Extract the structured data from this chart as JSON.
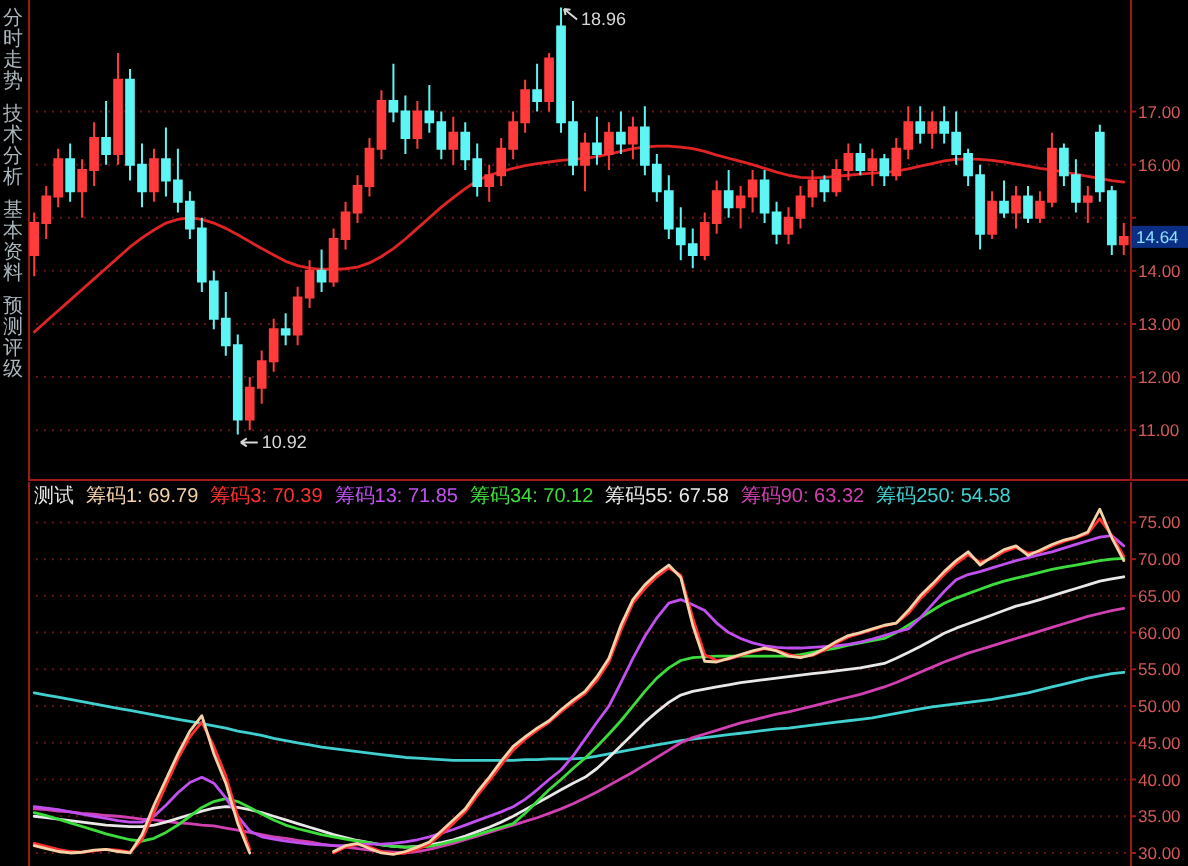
{
  "chart_data": [
    {
      "type": "candlestick",
      "categories": [
        null,
        null,
        null,
        null,
        null,
        null,
        null,
        null,
        null,
        null,
        null,
        null,
        null,
        null,
        null,
        null,
        null,
        null,
        null,
        null,
        null,
        null,
        null,
        null,
        null,
        null,
        null,
        null,
        null,
        null,
        null,
        null,
        null,
        null,
        null,
        null,
        null,
        null,
        null,
        null,
        null,
        null,
        null,
        null,
        null,
        null,
        null,
        null,
        null,
        null,
        null,
        null,
        null,
        null,
        null,
        null,
        null,
        null,
        null,
        null,
        null,
        null,
        null,
        null,
        null,
        null,
        null,
        null,
        null,
        null,
        null,
        null,
        null,
        null,
        null,
        null,
        null,
        null,
        null,
        null,
        null,
        null,
        null,
        null,
        null,
        null,
        null,
        null,
        null,
        null,
        null,
        null
      ],
      "ohlc": [
        [
          14.3,
          15.1,
          13.9,
          14.9
        ],
        [
          14.9,
          15.6,
          14.6,
          15.4
        ],
        [
          15.4,
          16.3,
          15.2,
          16.1
        ],
        [
          16.1,
          16.4,
          15.3,
          15.5
        ],
        [
          15.5,
          16.1,
          15.0,
          15.9
        ],
        [
          15.9,
          16.8,
          15.6,
          16.5
        ],
        [
          16.5,
          17.2,
          16.0,
          16.2
        ],
        [
          16.2,
          18.1,
          16.0,
          17.6
        ],
        [
          17.6,
          17.8,
          15.7,
          16.0
        ],
        [
          16.0,
          16.4,
          15.2,
          15.5
        ],
        [
          15.5,
          16.3,
          15.3,
          16.1
        ],
        [
          16.1,
          16.7,
          15.4,
          15.7
        ],
        [
          15.7,
          16.3,
          15.1,
          15.3
        ],
        [
          15.3,
          15.5,
          14.6,
          14.8
        ],
        [
          14.8,
          15.0,
          13.6,
          13.8
        ],
        [
          13.8,
          14.0,
          12.9,
          13.1
        ],
        [
          13.1,
          13.6,
          12.4,
          12.6
        ],
        [
          12.6,
          12.8,
          10.92,
          11.2
        ],
        [
          11.2,
          12.0,
          11.0,
          11.8
        ],
        [
          11.8,
          12.5,
          11.5,
          12.3
        ],
        [
          12.3,
          13.1,
          12.1,
          12.9
        ],
        [
          12.9,
          13.2,
          12.6,
          12.8
        ],
        [
          12.8,
          13.7,
          12.6,
          13.5
        ],
        [
          13.5,
          14.2,
          13.3,
          14.0
        ],
        [
          14.0,
          14.4,
          13.6,
          13.8
        ],
        [
          13.8,
          14.8,
          13.7,
          14.6
        ],
        [
          14.6,
          15.3,
          14.4,
          15.1
        ],
        [
          15.1,
          15.8,
          14.9,
          15.6
        ],
        [
          15.6,
          16.5,
          15.4,
          16.3
        ],
        [
          16.3,
          17.4,
          16.1,
          17.2
        ],
        [
          17.2,
          17.9,
          16.8,
          17.0
        ],
        [
          17.0,
          17.3,
          16.2,
          16.5
        ],
        [
          16.5,
          17.2,
          16.3,
          17.0
        ],
        [
          17.0,
          17.5,
          16.6,
          16.8
        ],
        [
          16.8,
          17.0,
          16.1,
          16.3
        ],
        [
          16.3,
          16.9,
          16.0,
          16.6
        ],
        [
          16.6,
          16.8,
          15.9,
          16.1
        ],
        [
          16.1,
          16.4,
          15.4,
          15.6
        ],
        [
          15.6,
          16.0,
          15.3,
          15.8
        ],
        [
          15.8,
          16.5,
          15.6,
          16.3
        ],
        [
          16.3,
          17.0,
          16.1,
          16.8
        ],
        [
          16.8,
          17.6,
          16.6,
          17.4
        ],
        [
          17.4,
          17.9,
          17.0,
          17.2
        ],
        [
          17.2,
          18.1,
          17.0,
          18.0
        ],
        [
          18.6,
          18.96,
          16.6,
          16.8
        ],
        [
          16.8,
          17.2,
          15.8,
          16.0
        ],
        [
          16.0,
          16.6,
          15.5,
          16.4
        ],
        [
          16.4,
          16.9,
          16.0,
          16.2
        ],
        [
          16.2,
          16.8,
          15.9,
          16.6
        ],
        [
          16.6,
          17.0,
          16.2,
          16.4
        ],
        [
          16.4,
          16.9,
          16.1,
          16.7
        ],
        [
          16.7,
          17.1,
          15.8,
          16.0
        ],
        [
          16.0,
          16.2,
          15.3,
          15.5
        ],
        [
          15.5,
          15.8,
          14.6,
          14.8
        ],
        [
          14.8,
          15.2,
          14.2,
          14.5
        ],
        [
          14.5,
          14.8,
          14.05,
          14.3
        ],
        [
          14.3,
          15.1,
          14.2,
          14.9
        ],
        [
          14.9,
          15.7,
          14.7,
          15.5
        ],
        [
          15.5,
          15.9,
          15.0,
          15.2
        ],
        [
          15.2,
          15.6,
          14.8,
          15.4
        ],
        [
          15.4,
          15.9,
          15.1,
          15.7
        ],
        [
          15.7,
          15.9,
          14.9,
          15.1
        ],
        [
          15.1,
          15.3,
          14.5,
          14.7
        ],
        [
          14.7,
          15.2,
          14.5,
          15.0
        ],
        [
          15.0,
          15.6,
          14.8,
          15.4
        ],
        [
          15.4,
          15.9,
          15.2,
          15.7
        ],
        [
          15.7,
          15.8,
          15.3,
          15.5
        ],
        [
          15.5,
          16.1,
          15.4,
          15.9
        ],
        [
          15.9,
          16.4,
          15.7,
          16.2
        ],
        [
          16.2,
          16.4,
          15.8,
          15.9
        ],
        [
          15.9,
          16.3,
          15.6,
          16.1
        ],
        [
          16.1,
          16.2,
          15.6,
          15.8
        ],
        [
          15.8,
          16.5,
          15.7,
          16.3
        ],
        [
          16.3,
          17.1,
          16.1,
          16.8
        ],
        [
          16.8,
          17.1,
          16.4,
          16.6
        ],
        [
          16.6,
          17.0,
          16.3,
          16.8
        ],
        [
          16.8,
          17.1,
          16.4,
          16.6
        ],
        [
          16.6,
          17.0,
          16.0,
          16.2
        ],
        [
          16.2,
          16.3,
          15.6,
          15.8
        ],
        [
          15.8,
          16.0,
          14.4,
          14.7
        ],
        [
          14.7,
          15.5,
          14.6,
          15.3
        ],
        [
          15.3,
          15.7,
          15.0,
          15.1
        ],
        [
          15.1,
          15.6,
          14.8,
          15.4
        ],
        [
          15.4,
          15.6,
          14.9,
          15.0
        ],
        [
          15.0,
          15.5,
          14.9,
          15.3
        ],
        [
          15.3,
          16.6,
          15.2,
          16.3
        ],
        [
          16.3,
          16.4,
          15.6,
          15.8
        ],
        [
          15.8,
          16.1,
          15.1,
          15.3
        ],
        [
          15.3,
          15.6,
          14.9,
          15.4
        ],
        [
          16.6,
          16.75,
          15.3,
          15.5
        ],
        [
          15.5,
          15.6,
          14.3,
          14.5
        ],
        [
          14.5,
          14.9,
          14.3,
          14.64
        ]
      ],
      "colors": [
        "#ff3b3b",
        "#ff3b3b",
        "#ff3b3b",
        "#5ff5f5",
        "#ff3b3b",
        "#ff3b3b",
        "#5ff5f5",
        "#ff3b3b",
        "#5ff5f5",
        "#5ff5f5",
        "#ff3b3b",
        "#5ff5f5",
        "#5ff5f5",
        "#5ff5f5",
        "#5ff5f5",
        "#5ff5f5",
        "#5ff5f5",
        "#5ff5f5",
        "#ff3b3b",
        "#ff3b3b",
        "#ff3b3b",
        "#5ff5f5",
        "#ff3b3b",
        "#ff3b3b",
        "#5ff5f5",
        "#ff3b3b",
        "#ff3b3b",
        "#ff3b3b",
        "#ff3b3b",
        "#ff3b3b",
        "#5ff5f5",
        "#5ff5f5",
        "#ff3b3b",
        "#5ff5f5",
        "#5ff5f5",
        "#ff3b3b",
        "#5ff5f5",
        "#5ff5f5",
        "#ff3b3b",
        "#ff3b3b",
        "#ff3b3b",
        "#ff3b3b",
        "#5ff5f5",
        "#ff3b3b",
        "#5ff5f5",
        "#5ff5f5",
        "#ff3b3b",
        "#5ff5f5",
        "#ff3b3b",
        "#5ff5f5",
        "#ff3b3b",
        "#5ff5f5",
        "#5ff5f5",
        "#5ff5f5",
        "#5ff5f5",
        "#5ff5f5",
        "#ff3b3b",
        "#ff3b3b",
        "#5ff5f5",
        "#ff3b3b",
        "#ff3b3b",
        "#5ff5f5",
        "#5ff5f5",
        "#ff3b3b",
        "#ff3b3b",
        "#ff3b3b",
        "#5ff5f5",
        "#ff3b3b",
        "#ff3b3b",
        "#5ff5f5",
        "#ff3b3b",
        "#5ff5f5",
        "#ff3b3b",
        "#ff3b3b",
        "#5ff5f5",
        "#ff3b3b",
        "#5ff5f5",
        "#5ff5f5",
        "#5ff5f5",
        "#5ff5f5",
        "#ff3b3b",
        "#5ff5f5",
        "#ff3b3b",
        "#5ff5f5",
        "#ff3b3b",
        "#ff3b3b",
        "#5ff5f5",
        "#5ff5f5",
        "#ff3b3b",
        "#5ff5f5",
        "#5ff5f5",
        "#ff3b3b"
      ],
      "series": [
        {
          "type": "line",
          "color": "#e02424",
          "values": [
            12.85,
            13.05,
            13.25,
            13.45,
            13.65,
            13.85,
            14.05,
            14.25,
            14.45,
            14.62,
            14.77,
            14.9,
            14.97,
            15.0,
            14.97,
            14.9,
            14.8,
            14.68,
            14.55,
            14.42,
            14.3,
            14.18,
            14.1,
            14.05,
            14.03,
            14.03,
            14.04,
            14.07,
            14.15,
            14.27,
            14.42,
            14.6,
            14.8,
            15.0,
            15.2,
            15.38,
            15.55,
            15.7,
            15.8,
            15.87,
            15.93,
            15.98,
            16.02,
            16.05,
            16.08,
            16.1,
            16.12,
            16.15,
            16.2,
            16.25,
            16.3,
            16.33,
            16.35,
            16.35,
            16.33,
            16.3,
            16.25,
            16.18,
            16.12,
            16.06,
            16.0,
            15.93,
            15.86,
            15.8,
            15.76,
            15.75,
            15.76,
            15.78,
            15.8,
            15.82,
            15.84,
            15.85,
            15.88,
            15.92,
            15.97,
            16.02,
            16.07,
            16.1,
            16.11,
            16.1,
            16.08,
            16.05,
            16.01,
            15.97,
            15.93,
            15.9,
            15.86,
            15.82,
            15.78,
            15.74,
            15.7,
            15.67
          ]
        }
      ],
      "ylim": [
        10.1,
        19.1
      ],
      "yticks": [
        {
          "value": 11,
          "label": "11.00"
        },
        {
          "value": 12,
          "label": "12.00"
        },
        {
          "value": 13,
          "label": "13.00"
        },
        {
          "value": 14,
          "label": "14.00"
        },
        {
          "value": 15,
          "label": null
        },
        {
          "value": 16,
          "label": "16.00"
        },
        {
          "value": 17,
          "label": "17.00"
        }
      ],
      "grid": "y",
      "annotations": [
        "18.96",
        "10.92",
        "14.64",
        "分时走势",
        "技术分析",
        "基本资料",
        "预测评级"
      ]
    },
    {
      "type": "line",
      "title": "测试",
      "categories": [
        null,
        null,
        null,
        null,
        null,
        null,
        null,
        null,
        null,
        null,
        null,
        null,
        null,
        null,
        null,
        null,
        null,
        null,
        null,
        null,
        null,
        null,
        null,
        null,
        null,
        null,
        null,
        null,
        null,
        null,
        null,
        null,
        null,
        null,
        null,
        null,
        null,
        null,
        null,
        null,
        null,
        null,
        null,
        null,
        null,
        null,
        null,
        null,
        null,
        null,
        null,
        null,
        null,
        null,
        null,
        null,
        null,
        null,
        null,
        null,
        null,
        null,
        null,
        null,
        null,
        null,
        null,
        null,
        null,
        null,
        null,
        null,
        null,
        null,
        null,
        null,
        null,
        null,
        null,
        null,
        null,
        null,
        null,
        null,
        null,
        null,
        null,
        null,
        null,
        null,
        null,
        null
      ],
      "series": [
        {
          "name": "筹码1: 69.79",
          "color": "#f4d2a8",
          "values": [
            31.0,
            30.6,
            30.2,
            30.0,
            30.1,
            30.4,
            30.5,
            30.2,
            30.0,
            32.5,
            36.5,
            40.0,
            43.5,
            46.6,
            48.7,
            43.5,
            39.5,
            34.0,
            30.0,
            null,
            null,
            null,
            null,
            null,
            null,
            30.2,
            31.0,
            31.3,
            30.6,
            30.0,
            29.8,
            30.2,
            30.8,
            31.5,
            33.0,
            34.5,
            36.0,
            38.3,
            40.3,
            42.5,
            44.5,
            45.8,
            47.0,
            48.0,
            49.5,
            50.8,
            52.0,
            54.0,
            56.5,
            61.0,
            64.5,
            66.5,
            68.0,
            69.2,
            67.5,
            61.0,
            56.1,
            56.0,
            56.5,
            57.0,
            57.5,
            57.9,
            57.5,
            56.8,
            56.6,
            57.0,
            57.8,
            58.8,
            59.6,
            60.0,
            60.5,
            61.0,
            61.3,
            63.0,
            65.0,
            66.6,
            68.3,
            69.8,
            71.0,
            69.2,
            70.3,
            71.3,
            71.8,
            70.5,
            71.2,
            72.0,
            72.6,
            73.0,
            73.7,
            76.8,
            72.9,
            69.8
          ]
        },
        {
          "name": "筹码3: 70.39",
          "color": "#ff3030",
          "values": [
            31.3,
            30.9,
            30.5,
            30.2,
            30.1,
            30.3,
            30.5,
            30.4,
            30.1,
            31.8,
            35.5,
            39.2,
            42.8,
            45.8,
            47.8,
            44.5,
            40.5,
            35.0,
            30.5,
            null,
            null,
            null,
            null,
            null,
            null,
            30.0,
            30.8,
            31.2,
            30.8,
            30.2,
            29.9,
            30.0,
            30.5,
            31.2,
            32.6,
            34.0,
            35.6,
            37.8,
            39.8,
            42.0,
            44.0,
            45.5,
            46.7,
            47.8,
            49.2,
            50.5,
            51.7,
            53.5,
            56.0,
            60.3,
            64.0,
            66.0,
            67.6,
            68.8,
            67.8,
            62.0,
            57.0,
            56.2,
            56.4,
            56.9,
            57.4,
            57.8,
            57.6,
            57.0,
            56.7,
            56.9,
            57.6,
            58.6,
            59.4,
            59.9,
            60.4,
            60.9,
            61.3,
            62.6,
            64.6,
            66.2,
            67.9,
            69.4,
            70.6,
            69.6,
            70.1,
            71.0,
            71.6,
            70.8,
            71.0,
            71.8,
            72.4,
            72.9,
            73.5,
            75.5,
            73.2,
            70.4
          ]
        },
        {
          "name": "筹码13: 71.85",
          "color": "#c050f0",
          "values": [
            36.3,
            36.1,
            35.9,
            35.6,
            35.3,
            35.0,
            34.7,
            34.4,
            34.2,
            34.2,
            35.0,
            36.5,
            38.2,
            39.6,
            40.3,
            39.5,
            37.5,
            35.0,
            33.0,
            32.2,
            31.9,
            31.6,
            31.4,
            31.2,
            31.1,
            31.0,
            31.0,
            31.1,
            31.2,
            31.2,
            31.3,
            31.5,
            31.8,
            32.2,
            32.7,
            33.2,
            33.8,
            34.4,
            35.0,
            35.6,
            36.3,
            37.3,
            38.6,
            40.0,
            41.3,
            43.2,
            45.5,
            47.8,
            50.0,
            53.2,
            56.5,
            59.5,
            62.0,
            64.0,
            64.5,
            63.8,
            63.0,
            61.3,
            60.0,
            59.2,
            58.6,
            58.2,
            58.0,
            57.9,
            57.9,
            58.0,
            58.1,
            58.2,
            58.4,
            58.7,
            59.1,
            59.6,
            60.1,
            60.5,
            62.0,
            63.8,
            65.6,
            67.2,
            67.9,
            68.3,
            68.8,
            69.3,
            69.8,
            70.2,
            70.6,
            71.0,
            71.5,
            72.0,
            72.5,
            73.0,
            73.2,
            71.8
          ]
        },
        {
          "name": "筹码34: 70.12",
          "color": "#3cdc3c",
          "values": [
            35.5,
            35.1,
            34.6,
            34.1,
            33.6,
            33.1,
            32.6,
            32.2,
            31.8,
            31.6,
            32.0,
            32.8,
            33.8,
            35.0,
            36.2,
            37.0,
            37.4,
            37.0,
            36.2,
            35.3,
            34.5,
            33.8,
            33.3,
            32.9,
            32.5,
            32.2,
            31.9,
            31.6,
            31.4,
            31.1,
            30.9,
            30.8,
            30.8,
            30.9,
            31.2,
            31.6,
            32.0,
            32.5,
            33.0,
            33.5,
            34.0,
            35.4,
            37.0,
            38.6,
            40.0,
            41.5,
            42.9,
            44.5,
            46.2,
            48.0,
            50.0,
            52.0,
            53.8,
            55.2,
            56.2,
            56.6,
            56.7,
            56.8,
            56.8,
            56.8,
            56.8,
            56.8,
            56.8,
            56.8,
            57.0,
            57.3,
            57.6,
            57.9,
            58.3,
            58.6,
            58.9,
            59.2,
            60.0,
            61.0,
            62.0,
            63.0,
            64.0,
            64.7,
            65.3,
            65.9,
            66.5,
            67.0,
            67.4,
            67.8,
            68.2,
            68.6,
            68.9,
            69.2,
            69.5,
            69.8,
            70.0,
            70.1
          ]
        },
        {
          "name": "筹码55: 67.58",
          "color": "#e8e8e8",
          "values": [
            35.0,
            34.8,
            34.6,
            34.4,
            34.2,
            34.0,
            33.8,
            33.7,
            33.6,
            33.6,
            33.8,
            34.2,
            34.7,
            35.2,
            35.7,
            36.1,
            36.3,
            36.2,
            35.9,
            35.5,
            35.0,
            34.5,
            34.0,
            33.5,
            33.0,
            32.5,
            32.1,
            31.7,
            31.4,
            31.1,
            30.9,
            30.8,
            30.9,
            31.1,
            31.4,
            31.8,
            32.3,
            32.9,
            33.5,
            34.2,
            35.0,
            35.9,
            36.8,
            37.7,
            38.6,
            39.5,
            40.3,
            41.5,
            43.0,
            44.6,
            46.2,
            47.8,
            49.2,
            50.5,
            51.5,
            52.0,
            52.3,
            52.6,
            52.9,
            53.2,
            53.4,
            53.6,
            53.8,
            54.0,
            54.2,
            54.4,
            54.6,
            54.8,
            55.0,
            55.2,
            55.5,
            55.8,
            56.5,
            57.3,
            58.1,
            59.0,
            59.9,
            60.6,
            61.2,
            61.8,
            62.4,
            63.0,
            63.6,
            64.0,
            64.5,
            65.0,
            65.5,
            66.0,
            66.5,
            67.0,
            67.3,
            67.6
          ]
        },
        {
          "name": "筹码90: 63.32",
          "color": "#d040b0",
          "values": [
            36.0,
            35.9,
            35.7,
            35.6,
            35.4,
            35.3,
            35.1,
            35.0,
            34.8,
            34.6,
            34.5,
            34.3,
            34.1,
            34.0,
            33.8,
            33.7,
            33.4,
            33.1,
            32.8,
            32.5,
            32.2,
            32.0,
            31.7,
            31.5,
            31.2,
            31.0,
            30.8,
            30.6,
            30.4,
            30.2,
            30.1,
            30.0,
            30.2,
            30.5,
            30.9,
            31.3,
            31.8,
            32.3,
            32.8,
            33.3,
            33.8,
            34.3,
            34.8,
            35.4,
            36.0,
            36.7,
            37.5,
            38.3,
            39.2,
            40.1,
            41.0,
            42.0,
            43.0,
            44.0,
            45.0,
            45.7,
            46.2,
            46.7,
            47.2,
            47.7,
            48.1,
            48.5,
            48.9,
            49.2,
            49.6,
            50.0,
            50.4,
            50.8,
            51.2,
            51.6,
            52.1,
            52.6,
            53.2,
            53.9,
            54.6,
            55.3,
            56.0,
            56.6,
            57.2,
            57.7,
            58.2,
            58.7,
            59.2,
            59.7,
            60.2,
            60.7,
            61.2,
            61.7,
            62.2,
            62.6,
            63.0,
            63.3
          ]
        },
        {
          "name": "筹码250: 54.58",
          "color": "#40d0d0",
          "values": [
            51.8,
            51.5,
            51.2,
            50.9,
            50.6,
            50.3,
            50.0,
            49.7,
            49.4,
            49.1,
            48.8,
            48.5,
            48.2,
            47.9,
            47.6,
            47.3,
            47.0,
            46.6,
            46.3,
            46.0,
            45.6,
            45.3,
            45.0,
            44.7,
            44.4,
            44.2,
            44.0,
            43.8,
            43.6,
            43.4,
            43.2,
            43.0,
            42.9,
            42.8,
            42.7,
            42.6,
            42.6,
            42.6,
            42.6,
            42.6,
            42.6,
            42.7,
            42.7,
            42.8,
            42.8,
            42.8,
            42.9,
            43.2,
            43.5,
            43.8,
            44.1,
            44.4,
            44.7,
            45.0,
            45.3,
            45.5,
            45.7,
            45.9,
            46.1,
            46.3,
            46.5,
            46.7,
            46.9,
            47.0,
            47.2,
            47.4,
            47.6,
            47.8,
            48.0,
            48.2,
            48.4,
            48.7,
            49.0,
            49.3,
            49.6,
            49.9,
            50.1,
            50.3,
            50.5,
            50.7,
            50.9,
            51.2,
            51.5,
            51.8,
            52.2,
            52.6,
            53.0,
            53.4,
            53.8,
            54.1,
            54.4,
            54.6
          ]
        }
      ],
      "ylim": [
        28.5,
        80.5
      ],
      "yticks": [
        {
          "value": 30,
          "label": "30.00"
        },
        {
          "value": 35,
          "label": "35.00"
        },
        {
          "value": 40,
          "label": "40.00"
        },
        {
          "value": 45,
          "label": "45.00"
        },
        {
          "value": 50,
          "label": "50.00"
        },
        {
          "value": 55,
          "label": "55.00"
        },
        {
          "value": 60,
          "label": "60.00"
        },
        {
          "value": 65,
          "label": "65.00"
        },
        {
          "value": 70,
          "label": "70.00"
        },
        {
          "value": 75,
          "label": "75.00"
        }
      ],
      "grid": "y"
    }
  ]
}
